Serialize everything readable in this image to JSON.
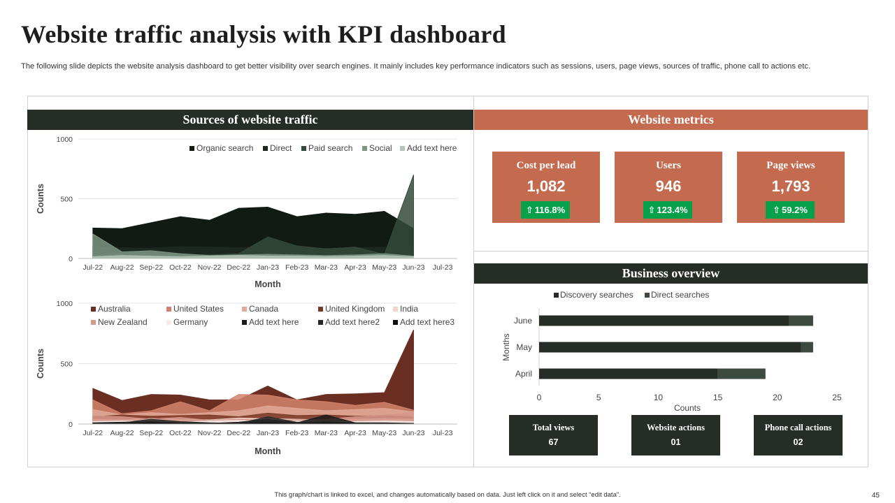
{
  "page": {
    "title": "Website traffic analysis with KPI dashboard",
    "subtitle": "The following slide depicts the website analysis dashboard to get better visibility over search engines. It mainly includes key performance indicators such as sessions, users, page views, sources of traffic, phone call to actions etc.",
    "footer": "This graph/chart is linked to excel, and changes automatically based on data. Just left click on it and select “edit data”.",
    "page_number": "45"
  },
  "sections": {
    "traffic": "Sources of  website traffic",
    "metrics": "Website metrics",
    "overview": "Business overview"
  },
  "kpis": [
    {
      "title": "Cost per lead",
      "value": "1,082",
      "change": "116.8%",
      "arrow": "⇧"
    },
    {
      "title": "Users",
      "value": "946",
      "change": "123.4%",
      "arrow": "⇧"
    },
    {
      "title": "Page views",
      "value": "1,793",
      "change": " 59.2%",
      "arrow": "⇧"
    }
  ],
  "stats": [
    {
      "title": "Total views",
      "value": "67"
    },
    {
      "title": "Website actions",
      "value": "01"
    },
    {
      "title": "Phone call actions",
      "value": "02"
    }
  ],
  "colors": {
    "dark": "#262d27",
    "rust": "#c36a4f",
    "green": "#07a04b"
  },
  "chart_data": [
    {
      "type": "area",
      "id": "traffic-sources",
      "title": "",
      "xlabel": "Month",
      "ylabel": "Counts",
      "ylim": [
        0,
        1000
      ],
      "yticks": [
        0,
        500,
        1000
      ],
      "categories": [
        "Jul-22",
        "Aug-22",
        "Sep-22",
        "Oct-22",
        "Nov-22",
        "Dec-22",
        "Jan-23",
        "Feb-23",
        "Mar-23",
        "Apr-23",
        "May-23",
        "Jun-23",
        "Jul-23"
      ],
      "legend": "top",
      "series": [
        {
          "name": "Organic search",
          "color": "#121a14",
          "values": [
            255,
            250,
            300,
            350,
            320,
            420,
            430,
            350,
            380,
            370,
            395,
            250,
            null
          ]
        },
        {
          "name": "Direct",
          "color": "#1d2a21",
          "values": [
            95,
            90,
            85,
            100,
            95,
            90,
            100,
            90,
            85,
            90,
            95,
            90,
            null
          ]
        },
        {
          "name": "Paid search",
          "color": "#344a3b",
          "values": [
            30,
            40,
            45,
            35,
            30,
            40,
            180,
            105,
            80,
            95,
            35,
            700,
            null
          ]
        },
        {
          "name": "Social",
          "color": "#7c9482",
          "values": [
            205,
            55,
            65,
            40,
            25,
            30,
            35,
            30,
            25,
            30,
            40,
            20,
            null
          ]
        },
        {
          "name": "Add text here",
          "color": "#b4c5b8",
          "values": [
            15,
            25,
            20,
            15,
            20,
            25,
            20,
            20,
            15,
            20,
            25,
            15,
            null
          ]
        }
      ]
    },
    {
      "type": "area",
      "id": "traffic-countries",
      "title": "",
      "xlabel": "Month",
      "ylabel": "Counts",
      "ylim": [
        0,
        1000
      ],
      "yticks": [
        0,
        500,
        1000
      ],
      "categories": [
        "Jul-22",
        "Aug-22",
        "Sep-22",
        "Oct-22",
        "Nov-22",
        "Dec-22",
        "Jan-23",
        "Feb-23",
        "Mar-23",
        "Apr-23",
        "May-23",
        "Jun-23",
        "Jul-23"
      ],
      "legend": "top",
      "series": [
        {
          "name": "Australia",
          "color": "#6b2e22",
          "values": [
            295,
            195,
            245,
            240,
            200,
            200,
            315,
            200,
            245,
            250,
            260,
            780,
            null
          ]
        },
        {
          "name": "United States",
          "color": "#d2826b",
          "values": [
            200,
            85,
            110,
            185,
            110,
            245,
            240,
            200,
            185,
            155,
            180,
            115,
            null
          ]
        },
        {
          "name": "Canada",
          "color": "#e0a898",
          "values": [
            120,
            75,
            95,
            80,
            95,
            110,
            150,
            130,
            110,
            120,
            130,
            100,
            null
          ]
        },
        {
          "name": "United Kingdom",
          "color": "#7a3826",
          "values": [
            60,
            75,
            65,
            70,
            75,
            60,
            90,
            70,
            75,
            65,
            70,
            60,
            null
          ]
        },
        {
          "name": "India",
          "color": "#f2d6cc",
          "values": [
            40,
            35,
            45,
            40,
            35,
            50,
            45,
            40,
            35,
            40,
            45,
            40,
            null
          ]
        },
        {
          "name": "New Zealand",
          "color": "#d6968a",
          "values": [
            70,
            60,
            40,
            55,
            30,
            40,
            30,
            35,
            40,
            60,
            75,
            95,
            null
          ]
        },
        {
          "name": "Germany",
          "color": "#f6ebe7",
          "values": [
            20,
            25,
            20,
            15,
            25,
            30,
            20,
            25,
            20,
            20,
            25,
            20,
            null
          ]
        },
        {
          "name": "Add text here",
          "color": "#1a1a1a",
          "values": [
            10,
            15,
            20,
            10,
            5,
            15,
            40,
            10,
            75,
            10,
            5,
            5,
            null
          ]
        },
        {
          "name": "Add text here2",
          "color": "#262626",
          "values": [
            5,
            10,
            40,
            20,
            10,
            5,
            60,
            15,
            20,
            10,
            10,
            5,
            null
          ]
        },
        {
          "name": "Add text here3",
          "color": "#0d0d0d",
          "values": [
            5,
            5,
            10,
            5,
            5,
            5,
            10,
            5,
            10,
            5,
            5,
            5,
            null
          ]
        }
      ]
    },
    {
      "type": "bar",
      "orientation": "horizontal",
      "stacked": true,
      "id": "business-overview",
      "title": "",
      "xlabel": "Counts",
      "ylabel": "Months",
      "xlim": [
        0,
        25
      ],
      "xticks": [
        0,
        5,
        10,
        15,
        20,
        25
      ],
      "categories": [
        "June",
        "May",
        "April"
      ],
      "legend": "top",
      "series": [
        {
          "name": "Discovery searches",
          "color": "#262d27",
          "values": [
            21,
            22,
            15
          ]
        },
        {
          "name": "Direct searches",
          "color": "#3c4a40",
          "values": [
            2,
            1,
            4
          ]
        }
      ]
    }
  ]
}
